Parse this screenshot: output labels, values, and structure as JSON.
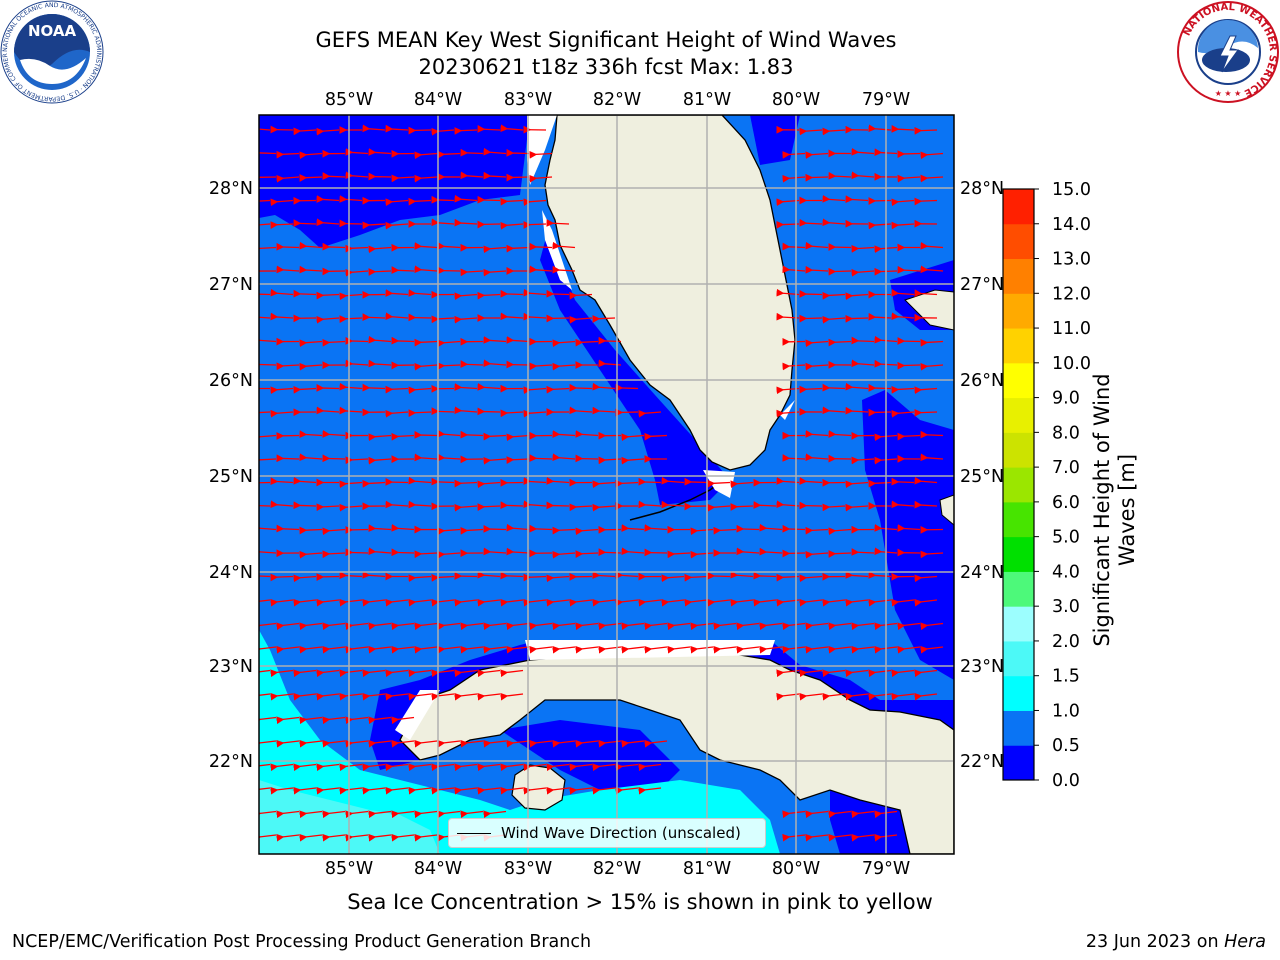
{
  "title_line1": "GEFS MEAN Key West Significant Height of Wind Waves",
  "title_line2": "20230621 t18z 336h fcst   Max: 1.83",
  "x_tick_labels": [
    "85°W",
    "84°W",
    "83°W",
    "82°W",
    "81°W",
    "80°W",
    "79°W"
  ],
  "y_tick_labels": [
    "28°N",
    "27°N",
    "26°N",
    "25°N",
    "24°N",
    "23°N",
    "22°N"
  ],
  "colorbar": {
    "label": "Significant Height of Wind Waves [m]",
    "ticks": [
      "0.0",
      "0.5",
      "1.0",
      "1.5",
      "2.0",
      "3.0",
      "4.0",
      "5.0",
      "6.0",
      "7.0",
      "8.0",
      "9.0",
      "10.0",
      "11.0",
      "12.0",
      "13.0",
      "14.0",
      "15.0"
    ],
    "colors": [
      "#0000ff",
      "#0a74f4",
      "#00ffff",
      "#4cf9f7",
      "#9cfefe",
      "#4df97a",
      "#00e000",
      "#47e400",
      "#9be600",
      "#cce300",
      "#e8f000",
      "#ffff00",
      "#ffd200",
      "#ffaa00",
      "#ff8000",
      "#ff4d00",
      "#ff2000"
    ]
  },
  "legend": {
    "label": "Wind Wave Direction (unscaled)"
  },
  "caption": "Sea Ice Concentration > 15% is shown in pink to yellow",
  "footer_left": "NCEP/EMC/Verification Post Processing Product Generation Branch",
  "footer_right_date": "23 Jun 2023 on",
  "footer_right_machine": "Hera",
  "logos": {
    "noaa_text": "NOAA",
    "noaa_ring_text": "NATIONAL OCEANIC AND ATMOSPHERIC ADMINISTRATION · U.S. DEPARTMENT OF COMMERCE",
    "nws_ring_text": "NATIONAL WEATHER SERVICE"
  },
  "colors": {
    "land": "#efefdf",
    "low_band": "#0000ff",
    "mid_band": "#0a74f4",
    "cyan_band": "#00ffff",
    "light_cyan_band": "#4cf9f7",
    "arrow": "#ff0000",
    "grid": "#b0b0b0"
  }
}
